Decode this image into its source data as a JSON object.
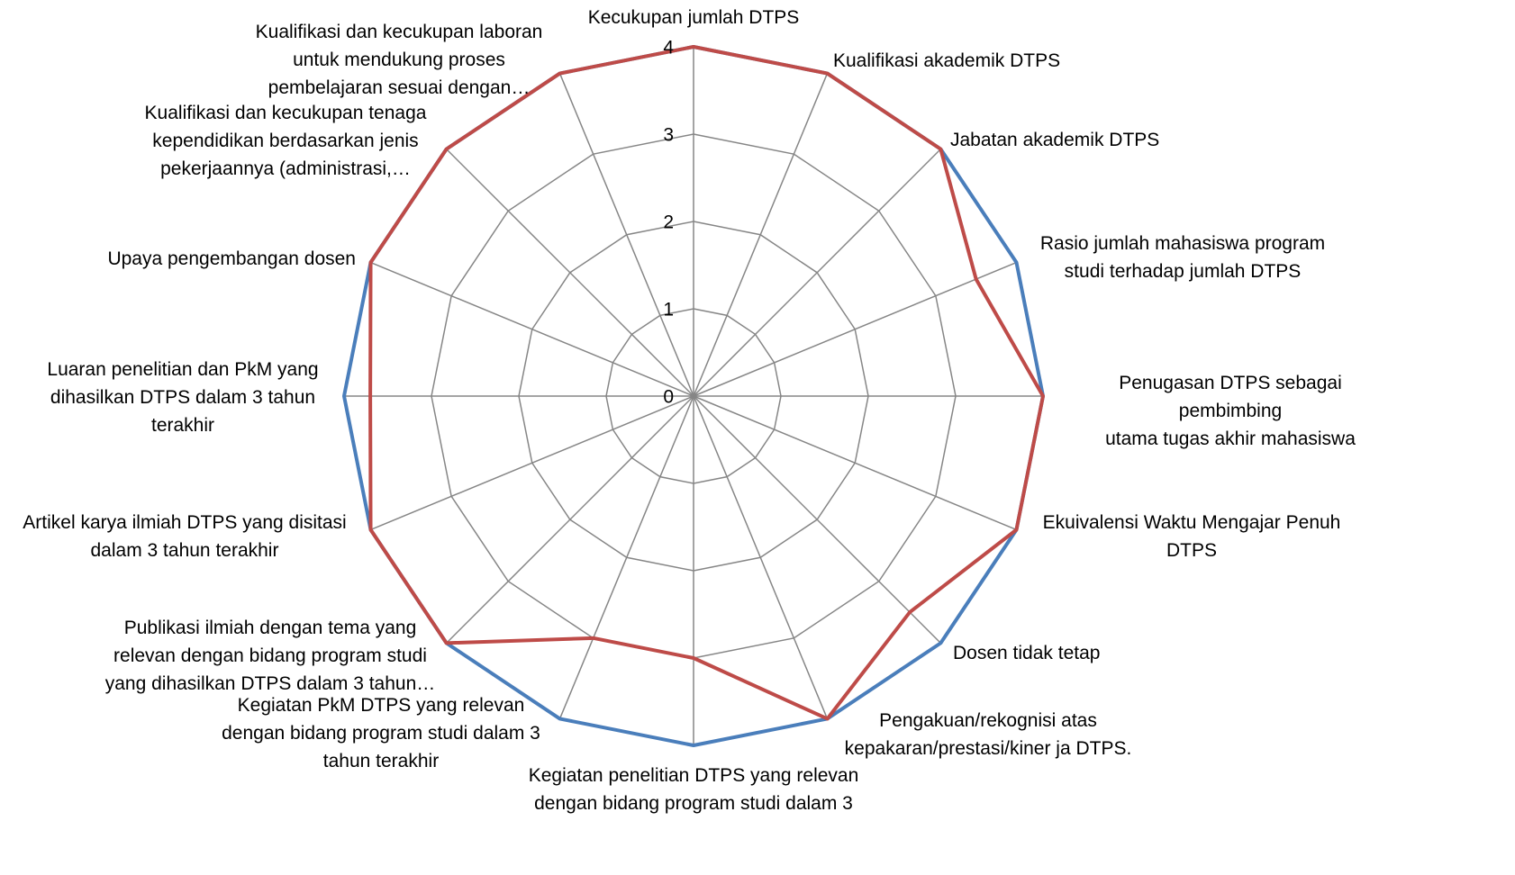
{
  "chart_data": {
    "type": "radar",
    "categories": [
      "Kecukupan jumlah DTPS",
      "Kualifikasi akademik DTPS",
      "Jabatan akademik DTPS",
      "Rasio jumlah mahasiswa program\nstudi terhadap jumlah DTPS",
      "Penugasan DTPS sebagai pembimbing\nutama tugas akhir mahasiswa",
      "Ekuivalensi Waktu Mengajar Penuh\nDTPS",
      "Dosen tidak tetap",
      "Pengakuan/rekognisi atas\nkepakaran/prestasi/kiner ja DTPS.",
      "Kegiatan penelitian DTPS yang relevan\ndengan bidang program studi dalam 3",
      "Kegiatan PkM DTPS yang relevan\ndengan bidang program studi dalam 3\ntahun terakhir",
      "Publikasi ilmiah dengan tema yang\nrelevan dengan bidang program studi\nyang dihasilkan DTPS dalam 3 tahun…",
      "Artikel karya ilmiah DTPS yang disitasi\ndalam 3 tahun terakhir",
      "Luaran penelitian dan PkM yang\ndihasilkan DTPS dalam 3 tahun\nterakhir",
      "Upaya pengembangan dosen",
      "Kualifikasi dan kecukupan tenaga\nkependidikan berdasarkan jenis\npekerjaannya (administrasi,…",
      "Kualifikasi dan kecukupan laboran\nuntuk mendukung proses\npembelajaran sesuai dengan…"
    ],
    "series": [
      {
        "color": "#4a7ebb",
        "values": [
          4,
          4,
          4,
          4,
          4,
          4,
          4,
          4,
          4,
          4,
          4,
          4,
          4,
          4,
          4,
          4
        ]
      },
      {
        "color": "#be4b48",
        "values": [
          4,
          4,
          4,
          3.5,
          4,
          4,
          3.5,
          4,
          3,
          3,
          4,
          4,
          3.7,
          4,
          4,
          4
        ]
      }
    ],
    "ylim": [
      0,
      4
    ],
    "yticks": [
      0,
      1,
      2,
      3,
      4
    ],
    "grid": true
  }
}
